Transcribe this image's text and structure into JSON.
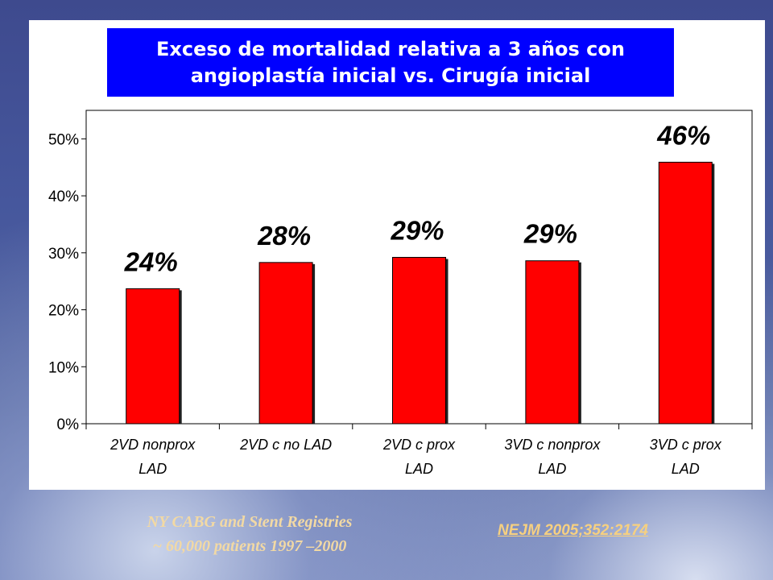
{
  "colors": {
    "bar": "#ff0000",
    "title_bg": "#0000ff",
    "title_text": "#ffffff",
    "source_text": "#f2d9a4"
  },
  "chart_data": {
    "type": "bar",
    "title_line1": "Exceso de mortalidad relativa a 3 años con",
    "title_line2": "angioplastía inicial vs. Cirugía inicial",
    "categories": [
      [
        "2VD nonprox",
        "LAD"
      ],
      [
        "2VD c no LAD",
        ""
      ],
      [
        "2VD c prox",
        "LAD"
      ],
      [
        "3VD c nonprox",
        "LAD"
      ],
      [
        "3VD c prox",
        "LAD"
      ]
    ],
    "values": [
      23.7,
      28.3,
      29.2,
      28.6,
      45.9
    ],
    "data_labels": [
      "24%",
      "28%",
      "29%",
      "29%",
      "46%"
    ],
    "ylim": [
      0,
      55
    ],
    "yticks": [
      0,
      10,
      20,
      30,
      40,
      50
    ],
    "ytick_labels": [
      "0%",
      "10%",
      "20%",
      "30%",
      "40%",
      "50%"
    ],
    "grid": false,
    "legend": "none"
  },
  "source": {
    "line1": "NY CABG and Stent Registries",
    "line2": "~ 60,000 patients 1997 –2000",
    "citation": "NEJM 2005;352:2174"
  }
}
